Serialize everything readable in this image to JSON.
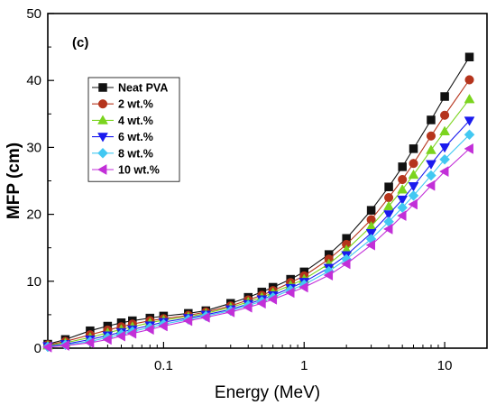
{
  "chart_data": {
    "type": "line",
    "panel_label": "(c)",
    "xlabel": "Energy (MeV)",
    "ylabel": "MFP (cm)",
    "x_scale": "log",
    "xlim": [
      0.015,
      20
    ],
    "ylim": [
      0,
      50
    ],
    "x_ticks": [
      0.1,
      1,
      10
    ],
    "x_tick_labels": [
      "0.1",
      "1",
      "10"
    ],
    "y_ticks": [
      0,
      10,
      20,
      30,
      40,
      50
    ],
    "y_tick_labels": [
      "0",
      "10",
      "20",
      "30",
      "40",
      "50"
    ],
    "grid": false,
    "legend_position": "top-left",
    "x": [
      0.015,
      0.02,
      0.03,
      0.04,
      0.05,
      0.06,
      0.08,
      0.1,
      0.15,
      0.2,
      0.3,
      0.4,
      0.5,
      0.6,
      0.8,
      1,
      1.5,
      2,
      3,
      4,
      5,
      6,
      8,
      10,
      15
    ],
    "series": [
      {
        "name": "Neat PVA",
        "marker": "square",
        "color": "#111111",
        "values": [
          0.6,
          1.3,
          2.6,
          3.3,
          3.8,
          4.1,
          4.5,
          4.8,
          5.2,
          5.6,
          6.7,
          7.6,
          8.4,
          9.1,
          10.3,
          11.4,
          14.0,
          16.4,
          20.6,
          24.1,
          27.1,
          29.8,
          34.1,
          37.6,
          43.5
        ]
      },
      {
        "name": "2 wt.%",
        "marker": "circle",
        "color": "#b5341c",
        "values": [
          0.5,
          1.0,
          2.0,
          2.7,
          3.2,
          3.6,
          4.1,
          4.4,
          4.9,
          5.4,
          6.3,
          7.2,
          7.9,
          8.6,
          9.8,
          10.8,
          13.3,
          15.5,
          19.2,
          22.5,
          25.2,
          27.6,
          31.7,
          34.8,
          40.1
        ]
      },
      {
        "name": "4 wt.%",
        "marker": "triangle-up",
        "color": "#7bd41e",
        "values": [
          0.4,
          0.8,
          1.6,
          2.3,
          2.8,
          3.2,
          3.8,
          4.2,
          4.7,
          5.2,
          6.1,
          6.9,
          7.6,
          8.3,
          9.4,
          10.3,
          12.6,
          14.7,
          18.2,
          21.2,
          23.7,
          25.9,
          29.6,
          32.4,
          37.2
        ]
      },
      {
        "name": "6 wt.%",
        "marker": "triangle-down",
        "color": "#1a1aee",
        "values": [
          0.3,
          0.6,
          1.3,
          1.9,
          2.4,
          2.8,
          3.4,
          3.9,
          4.5,
          5.0,
          5.8,
          6.6,
          7.3,
          7.9,
          9.0,
          9.9,
          12.0,
          13.9,
          17.2,
          20.0,
          22.2,
          24.2,
          27.5,
          30.0,
          34.0
        ]
      },
      {
        "name": "8 wt.%",
        "marker": "diamond",
        "color": "#42c8f2",
        "values": [
          0.2,
          0.5,
          1.0,
          1.6,
          2.1,
          2.5,
          3.1,
          3.6,
          4.3,
          4.8,
          5.6,
          6.4,
          7.0,
          7.6,
          8.7,
          9.5,
          11.5,
          13.3,
          16.3,
          18.9,
          21.0,
          22.8,
          25.8,
          28.2,
          31.9
        ]
      },
      {
        "name": "10 wt.%",
        "marker": "triangle-left",
        "color": "#c22fd8",
        "values": [
          0.15,
          0.4,
          0.8,
          1.3,
          1.8,
          2.2,
          2.8,
          3.3,
          4.1,
          4.6,
          5.4,
          6.1,
          6.7,
          7.3,
          8.3,
          9.1,
          10.9,
          12.6,
          15.4,
          17.8,
          19.8,
          21.5,
          24.3,
          26.4,
          29.8
        ]
      }
    ]
  }
}
